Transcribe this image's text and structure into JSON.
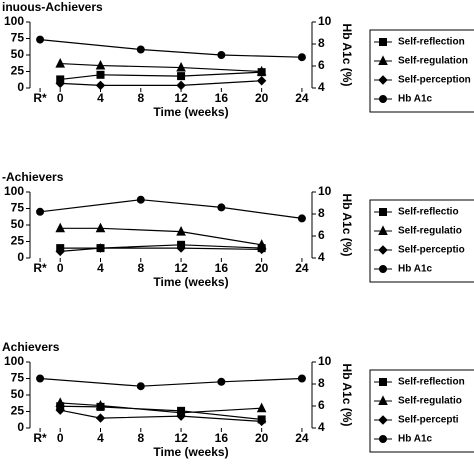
{
  "chart_data": [
    {
      "type": "line",
      "title": "inuous-Achievers",
      "x_label": "Time (weeks)",
      "y2_label": "Hb A1c (%)",
      "xlim": [
        -3,
        25
      ],
      "xticks": [
        {
          "value": -2,
          "label": "R*"
        },
        0,
        4,
        8,
        12,
        16,
        20,
        24
      ],
      "ylim": [
        0,
        100
      ],
      "yticks": [
        0,
        25,
        50,
        75,
        100
      ],
      "y2lim": [
        4,
        10
      ],
      "y2ticks": [
        4,
        6,
        8,
        10
      ],
      "legend": "right",
      "series": [
        {
          "name": "Self-reflection",
          "marker": "square",
          "color": "#000000",
          "x": [
            0,
            4,
            12,
            20
          ],
          "values": [
            13,
            20,
            18,
            24
          ]
        },
        {
          "name": "Self-regulation",
          "marker": "triangle",
          "color": "#000000",
          "x": [
            0,
            4,
            12,
            20
          ],
          "values": [
            37,
            34,
            31,
            25
          ]
        },
        {
          "name": "Self-perception",
          "marker": "diamond",
          "color": "#000000",
          "x": [
            0,
            4,
            12,
            20
          ],
          "values": [
            7,
            4,
            4,
            11
          ]
        },
        {
          "name": "Hb A1c",
          "marker": "circle",
          "color": "#000000",
          "axis": "y2",
          "x": [
            -2,
            8,
            16,
            24
          ],
          "values": [
            8.4,
            7.5,
            7.0,
            6.8
          ]
        }
      ]
    },
    {
      "type": "line",
      "title": "-Achievers",
      "x_label": "Time (weeks)",
      "y2_label": "Hb A1c (%)",
      "xlim": [
        -3,
        25
      ],
      "xticks": [
        {
          "value": -2,
          "label": "R*"
        },
        0,
        4,
        8,
        12,
        16,
        20,
        24
      ],
      "ylim": [
        0,
        100
      ],
      "yticks": [
        0,
        25,
        50,
        75,
        100
      ],
      "y2lim": [
        4,
        10
      ],
      "y2ticks": [
        4,
        6,
        8,
        10
      ],
      "legend": "right",
      "series": [
        {
          "name": "Self-reflectio",
          "marker": "square",
          "color": "#000000",
          "x": [
            0,
            4,
            12,
            20
          ],
          "values": [
            15,
            15,
            20,
            15
          ]
        },
        {
          "name": "Self-regulatio",
          "marker": "triangle",
          "color": "#000000",
          "x": [
            0,
            4,
            12,
            20
          ],
          "values": [
            45,
            45,
            40,
            20
          ]
        },
        {
          "name": "Self-perceptio",
          "marker": "diamond",
          "color": "#000000",
          "x": [
            0,
            4,
            12,
            20
          ],
          "values": [
            10,
            15,
            15,
            13
          ]
        },
        {
          "name": "Hb A1c",
          "marker": "circle",
          "color": "#000000",
          "axis": "y2",
          "x": [
            -2,
            8,
            16,
            24
          ],
          "values": [
            8.2,
            9.3,
            8.6,
            7.6
          ]
        }
      ]
    },
    {
      "type": "line",
      "title": "Achievers",
      "x_label": "Time (weeks)",
      "y2_label": "Hb A1c (%)",
      "xlim": [
        -3,
        25
      ],
      "xticks": [
        {
          "value": -2,
          "label": "R*"
        },
        0,
        4,
        8,
        12,
        16,
        20,
        24
      ],
      "ylim": [
        0,
        100
      ],
      "yticks": [
        0,
        25,
        50,
        75,
        100
      ],
      "y2lim": [
        4,
        10
      ],
      "y2ticks": [
        4,
        6,
        8,
        10
      ],
      "legend": "right",
      "series": [
        {
          "name": "Self-reflection",
          "marker": "square",
          "color": "#000000",
          "x": [
            0,
            4,
            12,
            20
          ],
          "values": [
            33,
            32,
            26,
            13
          ]
        },
        {
          "name": "Self-regulatio",
          "marker": "triangle",
          "color": "#000000",
          "x": [
            0,
            4,
            12,
            20
          ],
          "values": [
            38,
            34,
            23,
            30
          ]
        },
        {
          "name": "Self-percepti",
          "marker": "diamond",
          "color": "#000000",
          "x": [
            0,
            4,
            12,
            20
          ],
          "values": [
            27,
            15,
            18,
            10
          ]
        },
        {
          "name": "Hb A1c",
          "marker": "circle",
          "color": "#000000",
          "axis": "y2",
          "x": [
            -2,
            8,
            16,
            24
          ],
          "values": [
            8.5,
            7.8,
            8.2,
            8.5
          ]
        }
      ]
    }
  ]
}
